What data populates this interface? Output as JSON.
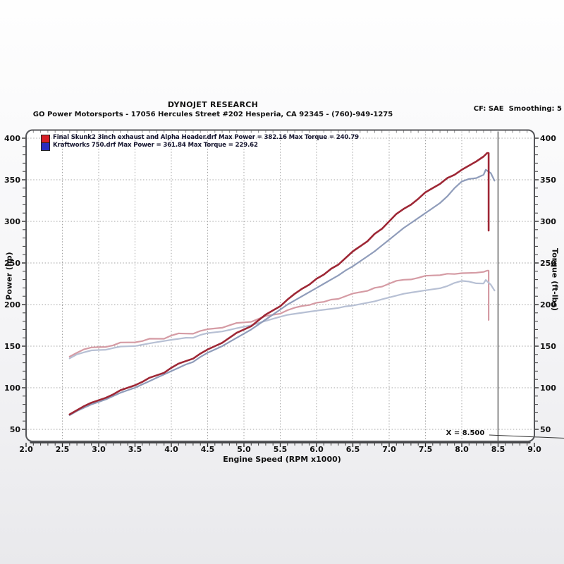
{
  "header": {
    "title": "DYNOJET RESEARCH",
    "subtitle": "GO Power Motorsports - 17056 Hercules Street #202 Hesperia, CA 92345 - (760)-949-1275",
    "cf": "CF: SAE  Smoothing: 5"
  },
  "chart_data": {
    "type": "line",
    "xlabel": "Engine Speed (RPM x1000)",
    "ylabel_left": "Power (hp)",
    "ylabel_right": "Torque (ft-lbs)",
    "xlim": [
      2.0,
      9.0
    ],
    "ylim": [
      35,
      410
    ],
    "grid": "dotted",
    "x_ticks": [
      "2.0",
      "2.5",
      "3.0",
      "3.5",
      "4.0",
      "4.5",
      "5.0",
      "5.5",
      "6.0",
      "6.5",
      "7.0",
      "7.5",
      "8.0",
      "8.5",
      "9.0"
    ],
    "y_ticks": [
      "50",
      "100",
      "150",
      "200",
      "250",
      "300",
      "350",
      "400"
    ],
    "cursor_x": 8.5,
    "cursor_label": "X = 8.500",
    "legend": [
      {
        "color": "#d71f26",
        "label": "Final Skunk2 3inch exhaust and Alpha Header.drf Max Power = 382.16 Max Torque = 240.79"
      },
      {
        "color": "#2a2dc0",
        "label": "Kraftworks 750.drf Max Power = 361.84 Max Torque = 229.62"
      }
    ],
    "series": [
      {
        "name": "torque-red",
        "color": "#d59ba4",
        "width": 2.2,
        "x": [
          2.6,
          2.7,
          2.8,
          2.9,
          3.0,
          3.1,
          3.2,
          3.3,
          3.4,
          3.5,
          3.6,
          3.7,
          3.8,
          3.9,
          4.0,
          4.1,
          4.2,
          4.3,
          4.4,
          4.5,
          4.6,
          4.7,
          4.8,
          4.9,
          5.0,
          5.1,
          5.2,
          5.3,
          5.4,
          5.5,
          5.6,
          5.7,
          5.8,
          5.9,
          6.0,
          6.1,
          6.2,
          6.3,
          6.4,
          6.5,
          6.6,
          6.7,
          6.8,
          6.9,
          7.0,
          7.1,
          7.2,
          7.3,
          7.4,
          7.5,
          7.6,
          7.7,
          7.8,
          7.9,
          8.0,
          8.1,
          8.2,
          8.3,
          8.35,
          8.37,
          8.37
        ],
        "y": [
          137.4,
          142.0,
          146.3,
          148.5,
          148.8,
          149.1,
          151.0,
          154.4,
          154.5,
          154.6,
          156.1,
          159.0,
          158.9,
          158.9,
          162.8,
          165.3,
          165.1,
          164.9,
          168.3,
          170.4,
          171.3,
          172.1,
          175.1,
          177.9,
          178.6,
          179.2,
          182.8,
          186.3,
          187.7,
          189.1,
          193.2,
          196.3,
          198.3,
          199.4,
          202.2,
          203.2,
          205.9,
          206.8,
          210.1,
          213.3,
          214.9,
          216.4,
          220.1,
          221.5,
          225.1,
          228.6,
          229.8,
          230.2,
          232.1,
          234.6,
          235.0,
          235.3,
          237.0,
          236.7,
          237.7,
          238.0,
          238.3,
          239.2,
          240.8,
          240.8,
          181.4
        ]
      },
      {
        "name": "torque-blue",
        "color": "#b7c0d4",
        "width": 2.2,
        "x": [
          2.6,
          2.7,
          2.8,
          2.9,
          3.0,
          3.1,
          3.2,
          3.3,
          3.4,
          3.5,
          3.6,
          3.7,
          3.8,
          3.9,
          4.0,
          4.1,
          4.2,
          4.3,
          4.4,
          4.5,
          4.6,
          4.7,
          4.8,
          4.9,
          5.0,
          5.1,
          5.2,
          5.3,
          5.4,
          5.5,
          5.6,
          5.7,
          5.8,
          5.9,
          6.0,
          6.1,
          6.2,
          6.3,
          6.4,
          6.5,
          6.6,
          6.7,
          6.8,
          6.9,
          7.0,
          7.1,
          7.2,
          7.3,
          7.4,
          7.5,
          7.6,
          7.7,
          7.8,
          7.9,
          8.0,
          8.1,
          8.2,
          8.3,
          8.33,
          8.4,
          8.45
        ],
        "y": [
          135.3,
          140.1,
          142.6,
          144.9,
          145.3,
          145.7,
          147.7,
          149.6,
          149.8,
          150.1,
          151.7,
          153.3,
          154.8,
          156.2,
          157.6,
          158.8,
          160.1,
          160.0,
          163.5,
          165.7,
          166.7,
          167.6,
          169.6,
          171.5,
          173.3,
          175.1,
          177.8,
          180.3,
          182.9,
          185.3,
          187.6,
          188.9,
          190.2,
          191.4,
          192.6,
          193.7,
          194.8,
          195.9,
          197.8,
          198.8,
          200.5,
          202.2,
          203.9,
          206.3,
          208.6,
          210.8,
          213.0,
          214.4,
          215.8,
          217.1,
          218.4,
          219.6,
          222.2,
          226.0,
          228.5,
          227.6,
          225.5,
          225.3,
          229.6,
          223.9,
          216.9
        ]
      },
      {
        "name": "power-blue",
        "color": "#8f9cba",
        "width": 2.2,
        "x": [
          2.6,
          2.7,
          2.8,
          2.9,
          3.0,
          3.1,
          3.2,
          3.3,
          3.4,
          3.5,
          3.6,
          3.7,
          3.8,
          3.9,
          4.0,
          4.1,
          4.2,
          4.3,
          4.4,
          4.5,
          4.6,
          4.7,
          4.8,
          4.9,
          5.0,
          5.1,
          5.2,
          5.3,
          5.4,
          5.5,
          5.6,
          5.7,
          5.8,
          5.9,
          6.0,
          6.1,
          6.2,
          6.3,
          6.4,
          6.5,
          6.6,
          6.7,
          6.8,
          6.9,
          7.0,
          7.1,
          7.2,
          7.3,
          7.4,
          7.5,
          7.6,
          7.7,
          7.8,
          7.9,
          8.0,
          8.1,
          8.2,
          8.3,
          8.33,
          8.4,
          8.45
        ],
        "y": [
          67,
          72,
          76,
          80,
          83,
          86,
          90,
          94,
          97,
          100,
          104,
          108,
          112,
          116,
          120,
          124,
          128,
          131,
          137,
          142,
          146,
          150,
          155,
          160,
          165,
          170,
          176,
          182,
          188,
          194,
          200,
          205,
          210,
          215,
          220,
          225,
          230,
          235,
          241,
          246,
          252,
          258,
          264,
          271,
          278,
          285,
          292,
          298,
          304,
          310,
          316,
          322,
          330,
          340,
          348,
          351,
          352,
          356,
          362,
          358,
          349
        ]
      },
      {
        "name": "power-red",
        "color": "#9e2735",
        "width": 2.6,
        "x": [
          2.6,
          2.7,
          2.8,
          2.9,
          3.0,
          3.1,
          3.2,
          3.3,
          3.4,
          3.5,
          3.6,
          3.7,
          3.8,
          3.9,
          4.0,
          4.1,
          4.2,
          4.3,
          4.4,
          4.5,
          4.6,
          4.7,
          4.8,
          4.9,
          5.0,
          5.1,
          5.2,
          5.3,
          5.4,
          5.5,
          5.6,
          5.7,
          5.8,
          5.9,
          6.0,
          6.1,
          6.2,
          6.3,
          6.4,
          6.5,
          6.6,
          6.7,
          6.8,
          6.9,
          7.0,
          7.1,
          7.2,
          7.3,
          7.4,
          7.5,
          7.6,
          7.7,
          7.8,
          7.9,
          8.0,
          8.1,
          8.2,
          8.3,
          8.35,
          8.37,
          8.37
        ],
        "y": [
          68,
          73,
          78,
          82,
          85,
          88,
          92,
          97,
          100,
          103,
          107,
          112,
          115,
          118,
          124,
          129,
          132,
          135,
          141,
          146,
          150,
          154,
          160,
          166,
          170,
          174,
          181,
          188,
          193,
          198,
          206,
          213,
          219,
          224,
          231,
          236,
          243,
          248,
          256,
          264,
          270,
          276,
          285,
          291,
          300,
          309,
          315,
          320,
          327,
          335,
          340,
          345,
          352,
          356,
          362,
          367,
          372,
          378,
          382.2,
          382,
          289
        ]
      }
    ]
  }
}
